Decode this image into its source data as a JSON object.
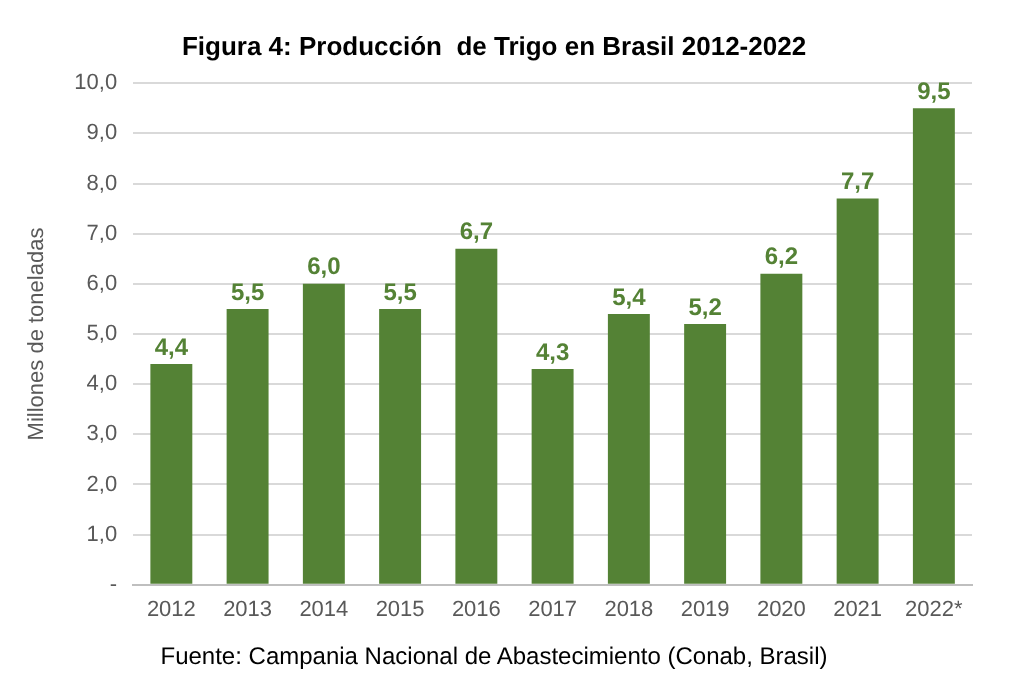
{
  "chart_data": {
    "type": "bar",
    "title": "Figura 4: Producción  de Trigo en Brasil 2012-2022",
    "ylabel": "Millones de toneladas",
    "annotations": [
      "Fuente: Campania Nacional de Abastecimiento (Conab, Brasil)"
    ],
    "categories": [
      "2012",
      "2013",
      "2014",
      "2015",
      "2016",
      "2017",
      "2018",
      "2019",
      "2020",
      "2021",
      "2022*"
    ],
    "values": [
      4.4,
      5.5,
      6.0,
      5.5,
      6.7,
      4.3,
      5.4,
      5.2,
      6.2,
      7.7,
      9.5
    ],
    "value_labels": [
      "4,4",
      "5,5",
      "6,0",
      "5,5",
      "6,7",
      "4,3",
      "5,4",
      "5,2",
      "6,2",
      "7,7",
      "9,5"
    ],
    "color": "#548235",
    "ylim": [
      0,
      10
    ],
    "yticks": [
      {
        "value": 0,
        "label": "-"
      },
      {
        "value": 1,
        "label": "1,0"
      },
      {
        "value": 2,
        "label": "2,0"
      },
      {
        "value": 3,
        "label": "3,0"
      },
      {
        "value": 4,
        "label": "4,0"
      },
      {
        "value": 5,
        "label": "5,0"
      },
      {
        "value": 6,
        "label": "6,0"
      },
      {
        "value": 7,
        "label": "7,0"
      },
      {
        "value": 8,
        "label": "8,0"
      },
      {
        "value": 9,
        "label": "9,0"
      },
      {
        "value": 10,
        "label": "10,0"
      }
    ],
    "grid": "y",
    "legend": false
  }
}
